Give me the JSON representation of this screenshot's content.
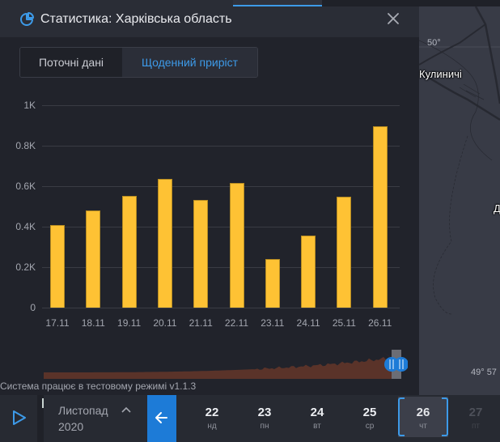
{
  "panel": {
    "title": "Статистика: Харківська область",
    "title_icon": "pie-chart-icon",
    "close_icon": "close-icon",
    "accent_color": "#3d9ae8"
  },
  "tabs": [
    {
      "label": "Поточні дані",
      "active": false
    },
    {
      "label": "Щоденний приріст",
      "active": true
    }
  ],
  "chart_data": {
    "type": "bar",
    "title": "",
    "xlabel": "",
    "ylabel": "",
    "categories": [
      "17.11",
      "18.11",
      "19.11",
      "20.11",
      "21.11",
      "22.11",
      "23.11",
      "24.11",
      "25.11",
      "26.11"
    ],
    "values": [
      407,
      481,
      551,
      635,
      532,
      615,
      239,
      355,
      547,
      895
    ],
    "yticks": [
      "0",
      "0.2K",
      "0.4K",
      "0.6K",
      "0.8K",
      "1K"
    ],
    "ylim": [
      0,
      1000
    ],
    "grid": true,
    "bar_color": "#fec234"
  },
  "timeline": {
    "area_color": "#5a3329",
    "handle_icon": "pause-handle-icon",
    "handle_color": "#1d7bd7"
  },
  "status_text": "Система працює в тестовому режимі v1.1.3",
  "map": {
    "labels": [
      {
        "text": "Кулиничі"
      },
      {
        "text": "Д"
      }
    ],
    "coords": [
      {
        "text": "50°"
      },
      {
        "text": "49° 57"
      }
    ]
  },
  "bottom_bar": {
    "play_icon": "play-icon",
    "month": "Листопад",
    "year": "2020",
    "month_toggle_icon": "chevron-up-icon",
    "back_icon": "arrow-left-icon",
    "days": [
      {
        "num": "22",
        "dow": "нд"
      },
      {
        "num": "23",
        "dow": "пн"
      },
      {
        "num": "24",
        "dow": "вт"
      },
      {
        "num": "25",
        "dow": "ср"
      },
      {
        "num": "26",
        "dow": "чт",
        "selected": true
      },
      {
        "num": "27",
        "dow": "пт",
        "disabled": true
      }
    ]
  }
}
